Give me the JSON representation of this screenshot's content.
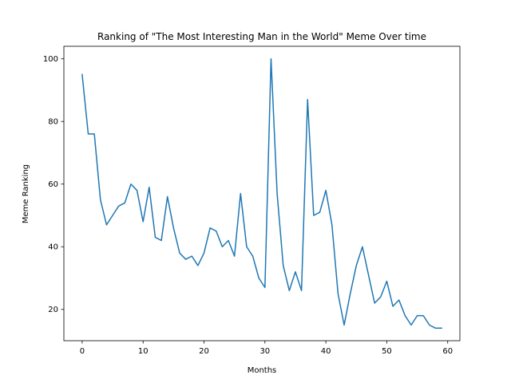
{
  "chart_data": {
    "type": "line",
    "title": "Ranking of \"The Most Interesting Man in the World\" Meme Over time",
    "xlabel": "Months",
    "ylabel": "Meme Ranking",
    "xlim": [
      -3,
      62
    ],
    "ylim": [
      10,
      104
    ],
    "xticks": [
      0,
      10,
      20,
      30,
      40,
      50,
      60
    ],
    "yticks": [
      20,
      40,
      60,
      80,
      100
    ],
    "grid": false,
    "series": [
      {
        "color": "#1f77b4",
        "x": [
          0,
          1,
          2,
          3,
          4,
          5,
          6,
          7,
          8,
          9,
          10,
          11,
          12,
          13,
          14,
          15,
          16,
          17,
          18,
          19,
          20,
          21,
          22,
          23,
          24,
          25,
          26,
          27,
          28,
          29,
          30,
          31,
          32,
          33,
          34,
          35,
          36,
          37,
          38,
          39,
          40,
          41,
          42,
          43,
          44,
          45,
          46,
          47,
          48,
          49,
          50,
          51,
          52,
          53,
          54,
          55,
          56,
          57,
          58,
          59
        ],
        "values": [
          95,
          76,
          76,
          55,
          47,
          50,
          53,
          54,
          60,
          58,
          48,
          59,
          43,
          42,
          56,
          46,
          38,
          36,
          37,
          34,
          38,
          46,
          45,
          40,
          42,
          37,
          57,
          40,
          37,
          30,
          27,
          100,
          57,
          34,
          26,
          32,
          26,
          87,
          50,
          51,
          58,
          47,
          25,
          15,
          25,
          34,
          40,
          31,
          22,
          24,
          29,
          21,
          23,
          18,
          15,
          18,
          18,
          15,
          14,
          14
        ]
      }
    ]
  }
}
